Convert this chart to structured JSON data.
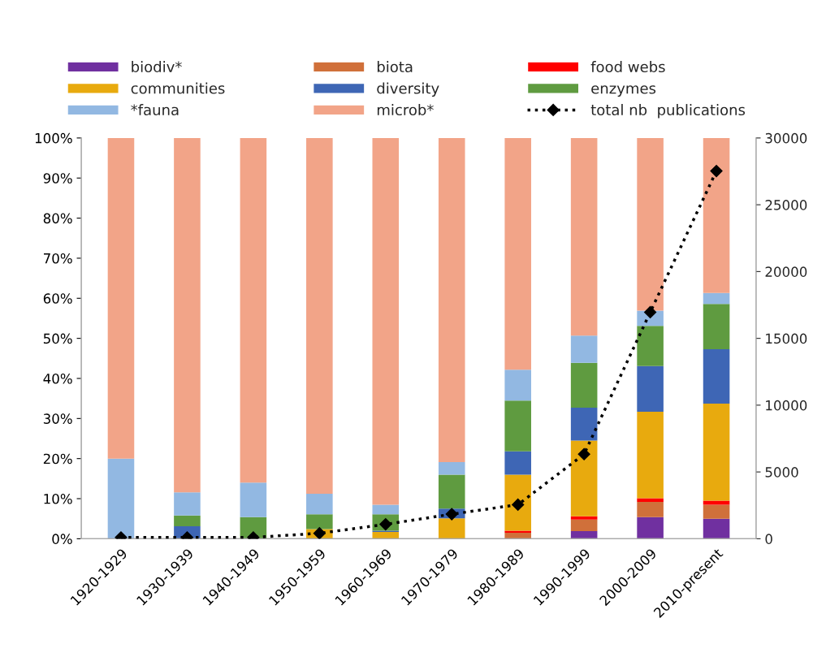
{
  "chart_data": {
    "type": "bar",
    "stacked": true,
    "categories": [
      "1920-1929",
      "1930-1939",
      "1940-1949",
      "1950-1959",
      "1960-1969",
      "1970-1979",
      "1980-1989",
      "1990-1999",
      "2000-2009",
      "2010-present"
    ],
    "series": [
      {
        "name": "biodiv*",
        "color": "#7030a0",
        "values": [
          0,
          0,
          0,
          0,
          0,
          0,
          0,
          1.9,
          5.4,
          5.0
        ]
      },
      {
        "name": "biota",
        "color": "#d0703a",
        "values": [
          0,
          0,
          0,
          0,
          0,
          0,
          1.5,
          2.9,
          3.8,
          3.5
        ]
      },
      {
        "name": "food webs",
        "color": "#ff0000",
        "values": [
          0,
          0,
          0,
          0,
          0,
          0,
          0.5,
          0.8,
          0.9,
          1.0
        ]
      },
      {
        "name": "communities",
        "color": "#e8aa0e",
        "values": [
          0,
          0,
          0,
          2.4,
          1.7,
          5.1,
          14.0,
          18.9,
          21.6,
          24.2
        ]
      },
      {
        "name": "diversity",
        "color": "#3e66b5",
        "values": [
          0,
          3.1,
          0,
          0,
          0.3,
          2.4,
          5.8,
          8.2,
          11.4,
          13.6
        ]
      },
      {
        "name": "enzymes",
        "color": "#5f9b40",
        "values": [
          0,
          2.7,
          5.4,
          3.7,
          4.1,
          8.5,
          12.7,
          11.2,
          10.0,
          11.3
        ]
      },
      {
        "name": "*fauna",
        "color": "#92b8e2",
        "values": [
          20,
          5.8,
          8.6,
          5.1,
          2.4,
          3.1,
          7.7,
          6.8,
          3.8,
          2.7
        ]
      },
      {
        "name": "microb*",
        "color": "#f2a488",
        "values": [
          80,
          88.4,
          86.0,
          88.8,
          91.5,
          80.9,
          57.8,
          49.3,
          43.1,
          38.7
        ]
      },
      {
        "name": "total nb  publications",
        "type": "line",
        "axis": "y2",
        "color": "#000000",
        "marker": "diamond",
        "line_style": "dotted",
        "values": [
          100,
          100,
          100,
          410,
          1080,
          1840,
          2550,
          6330,
          16960,
          27530
        ]
      }
    ],
    "ylim": [
      0,
      100
    ],
    "yticks": [
      {
        "value": 0,
        "label": "0%"
      },
      {
        "value": 10,
        "label": "10%"
      },
      {
        "value": 20,
        "label": "20%"
      },
      {
        "value": 30,
        "label": "30%"
      },
      {
        "value": 40,
        "label": "40%"
      },
      {
        "value": 50,
        "label": "50%"
      },
      {
        "value": 60,
        "label": "60%"
      },
      {
        "value": 70,
        "label": "70%"
      },
      {
        "value": 80,
        "label": "80%"
      },
      {
        "value": 90,
        "label": "90%"
      },
      {
        "value": 100,
        "label": "100%"
      }
    ],
    "y2lim": [
      0,
      30000
    ],
    "y2ticks": [
      0,
      5000,
      10000,
      15000,
      20000,
      25000,
      30000
    ],
    "grid": false,
    "legend": "top"
  }
}
